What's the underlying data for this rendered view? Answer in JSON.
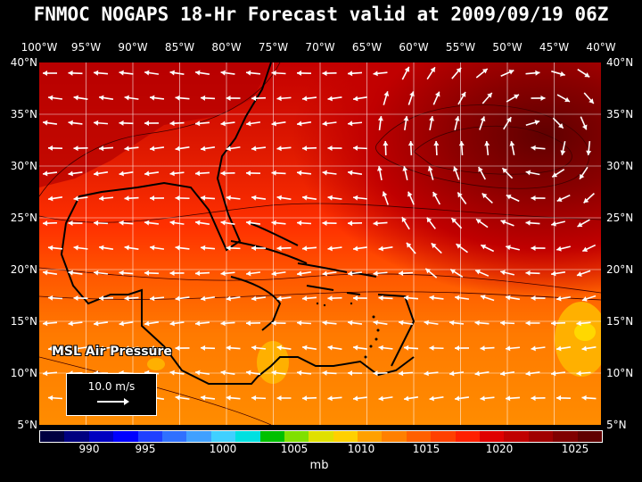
{
  "title": "FNMOC NOGAPS 18-Hr Forecast valid at 2009/09/19 06Z",
  "longitudes": [
    "100°W",
    "95°W",
    "90°W",
    "85°W",
    "80°W",
    "75°W",
    "70°W",
    "65°W",
    "60°W",
    "55°W",
    "50°W",
    "45°W",
    "40°W"
  ],
  "latitudes": [
    "40°N",
    "35°N",
    "30°N",
    "25°N",
    "20°N",
    "15°N",
    "10°N",
    "5°N"
  ],
  "field_label": "MSL Air Pressure",
  "scale_label": "10.0 m/s",
  "colorbar": {
    "labels": [
      "990",
      "995",
      "1000",
      "1005",
      "1010",
      "1015",
      "1020",
      "1025"
    ],
    "unit": "mb",
    "colors": [
      "#000040",
      "#000080",
      "#0000c0",
      "#0000ff",
      "#2040ff",
      "#3070ff",
      "#40a0ff",
      "#40d0ff",
      "#00e0e0",
      "#00c000",
      "#80e000",
      "#e0e000",
      "#ffd000",
      "#ffa000",
      "#ff8000",
      "#ff6000",
      "#ff4000",
      "#ff2000",
      "#e00000",
      "#c00000",
      "#a00000",
      "#800000",
      "#600000"
    ]
  }
}
